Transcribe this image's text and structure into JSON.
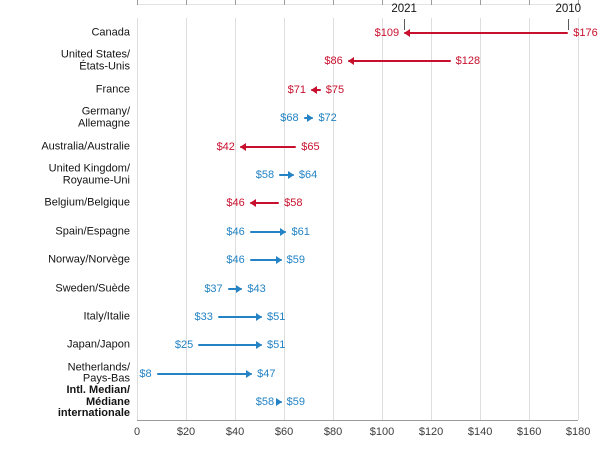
{
  "chart_data": {
    "type": "dumbbell",
    "year_labels": {
      "start": "2010",
      "end": "2021"
    },
    "colors": {
      "decrease": "#c8102e",
      "increase": "#2383c4"
    },
    "x_axis": {
      "min": 0,
      "max": 180,
      "grid": true,
      "tick_values": [
        0,
        20,
        40,
        60,
        80,
        100,
        120,
        140,
        160,
        180
      ],
      "tick_labels": [
        "0",
        "$20",
        "$40",
        "$60",
        "$80",
        "$100",
        "$120",
        "$140",
        "$160",
        "$180"
      ]
    },
    "rows": [
      {
        "country": "Canada",
        "label_lines": [
          "Canada"
        ],
        "value_2021": 109,
        "value_2010": 176,
        "label_2021": "$109",
        "label_2010": "$176",
        "direction": "decrease",
        "bold": false
      },
      {
        "country": "United States/États-Unis",
        "label_lines": [
          "United States/",
          "États-Unis"
        ],
        "value_2021": 86,
        "value_2010": 128,
        "label_2021": "$86",
        "label_2010": "$128",
        "direction": "decrease",
        "bold": false
      },
      {
        "country": "France",
        "label_lines": [
          "France"
        ],
        "value_2021": 71,
        "value_2010": 75,
        "label_2021": "$71",
        "label_2010": "$75",
        "direction": "decrease",
        "bold": false
      },
      {
        "country": "Germany/Allemagne",
        "label_lines": [
          "Germany/",
          "Allemagne"
        ],
        "value_2021": 72,
        "value_2010": 68,
        "label_2021": "$72",
        "label_2010": "$68",
        "direction": "increase",
        "bold": false
      },
      {
        "country": "Australia/Australie",
        "label_lines": [
          "Australia/Australie"
        ],
        "value_2021": 42,
        "value_2010": 65,
        "label_2021": "$42",
        "label_2010": "$65",
        "direction": "decrease",
        "bold": false
      },
      {
        "country": "United Kingdom/Royaume-Uni",
        "label_lines": [
          "United Kingdom/",
          "Royaume-Uni"
        ],
        "value_2021": 64,
        "value_2010": 58,
        "label_2021": "$64",
        "label_2010": "$58",
        "direction": "increase",
        "bold": false
      },
      {
        "country": "Belgium/Belgique",
        "label_lines": [
          "Belgium/Belgique"
        ],
        "value_2021": 46,
        "value_2010": 58,
        "label_2021": "$46",
        "label_2010": "$58",
        "direction": "decrease",
        "bold": false
      },
      {
        "country": "Spain/Espagne",
        "label_lines": [
          "Spain/Espagne"
        ],
        "value_2021": 61,
        "value_2010": 46,
        "label_2021": "$61",
        "label_2010": "$46",
        "direction": "increase",
        "bold": false
      },
      {
        "country": "Norway/Norvège",
        "label_lines": [
          "Norway/Norvège"
        ],
        "value_2021": 59,
        "value_2010": 46,
        "label_2021": "$59",
        "label_2010": "$46",
        "direction": "increase",
        "bold": false
      },
      {
        "country": "Sweden/Suède",
        "label_lines": [
          "Sweden/Suède"
        ],
        "value_2021": 43,
        "value_2010": 37,
        "label_2021": "$43",
        "label_2010": "$37",
        "direction": "increase",
        "bold": false
      },
      {
        "country": "Italy/Italie",
        "label_lines": [
          "Italy/Italie"
        ],
        "value_2021": 51,
        "value_2010": 33,
        "label_2021": "$51",
        "label_2010": "$33",
        "direction": "increase",
        "bold": false
      },
      {
        "country": "Japan/Japon",
        "label_lines": [
          "Japan/Japon"
        ],
        "value_2021": 51,
        "value_2010": 25,
        "label_2021": "$51",
        "label_2010": "$25",
        "direction": "increase",
        "bold": false
      },
      {
        "country": "Netherlands/Pays-Bas",
        "label_lines": [
          "Netherlands/",
          "Pays-Bas"
        ],
        "value_2021": 47,
        "value_2010": 8,
        "label_2021": "$47",
        "label_2010": "$8",
        "direction": "increase",
        "bold": false
      },
      {
        "country": "Intl. Median/Médiane internationale",
        "label_lines": [
          "Intl. Median/",
          "Médiane",
          "internationale"
        ],
        "value_2021": 59,
        "value_2010": 58,
        "label_2021": "$59",
        "label_2010": "$58",
        "direction": "increase",
        "bold": true
      }
    ]
  }
}
